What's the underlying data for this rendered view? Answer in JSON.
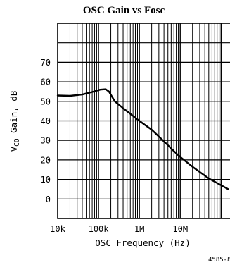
{
  "chart_data": {
    "type": "line",
    "title": "OSC Gain vs Fosc",
    "xlabel": "OSC Frequency (Hz)",
    "ylabel": {
      "main": "V",
      "sub": "CO",
      "rest": " Gain, dB"
    },
    "x_scale": "log",
    "xlim": [
      10000,
      300000000
    ],
    "ylim": [
      -10,
      90
    ],
    "x_ticks": [
      {
        "value": 10000,
        "label": "10k"
      },
      {
        "value": 100000,
        "label": "100k"
      },
      {
        "value": 1000000,
        "label": "1M"
      },
      {
        "value": 10000000,
        "label": "10M"
      }
    ],
    "y_ticks": [
      {
        "value": 0,
        "label": "0"
      },
      {
        "value": 10,
        "label": "10"
      },
      {
        "value": 20,
        "label": "20"
      },
      {
        "value": 30,
        "label": "30"
      },
      {
        "value": 40,
        "label": "40"
      },
      {
        "value": 50,
        "label": "50"
      },
      {
        "value": 60,
        "label": "60"
      },
      {
        "value": 70,
        "label": "70"
      }
    ],
    "grid": true,
    "series": [
      {
        "x": [
          10000,
          20000,
          40000,
          70000,
          110000,
          150000,
          180000,
          250000,
          400000,
          700000,
          1000000,
          2000000,
          4000000,
          7000000,
          10000000,
          20000000,
          50000000,
          150000000
        ],
        "y": [
          53,
          52.8,
          53.5,
          54.8,
          56,
          56.2,
          55,
          50,
          46.5,
          42.5,
          40,
          35.5,
          29.5,
          24.5,
          21.5,
          16.5,
          10.5,
          5
        ]
      }
    ],
    "figure_id": "4585-8"
  }
}
